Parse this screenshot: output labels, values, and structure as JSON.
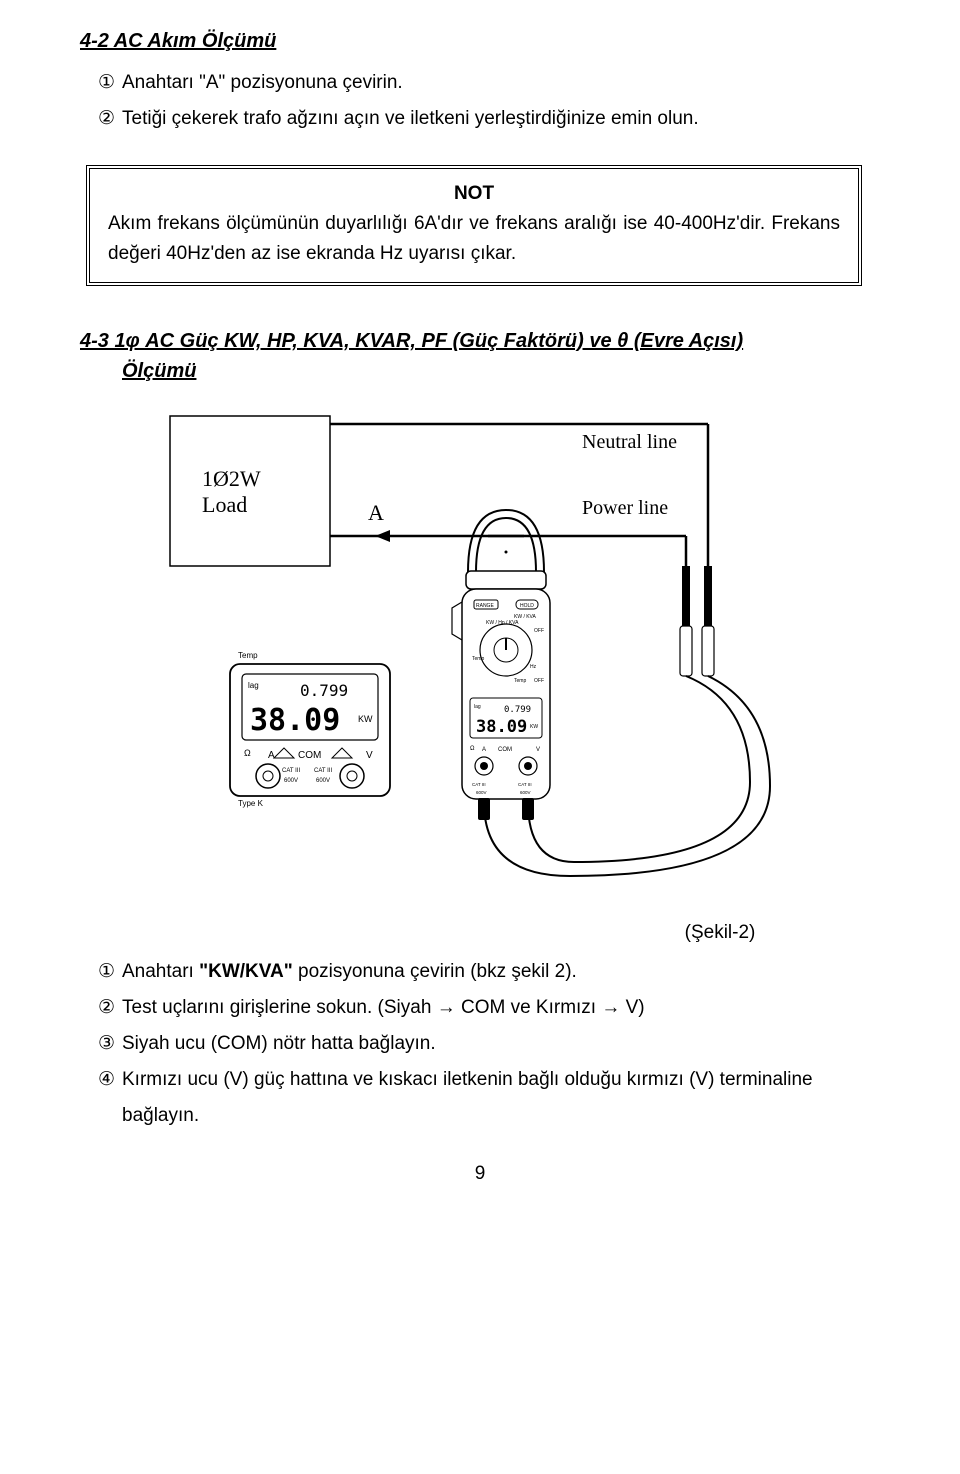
{
  "section_4_2": {
    "title": "4-2 AC Akım Ölçümü",
    "items": [
      {
        "marker": "①",
        "text": "Anahtarı \"A\" pozisyonuna çevirin."
      },
      {
        "marker": "②",
        "text": "Tetiği çekerek trafo ağzını açın ve iletkeni yerleştirdiğinize emin olun."
      }
    ]
  },
  "note": {
    "title": "NOT",
    "body": "Akım frekans ölçümünün duyarlılığı 6A'dır ve frekans aralığı ise 40-400Hz'dir. Frekans değeri 40Hz'den az ise ekranda Hz uyarısı çıkar."
  },
  "section_4_3": {
    "title_line1": "4-3 1φ AC Güç KW, HP, KVA, KVAR, PF (Güç Faktörü) ve θ (Evre Açısı)",
    "title_line2": "Ölçümü"
  },
  "diagram": {
    "load_label1": "1Ø2W",
    "load_label2": "Load",
    "arrow_label": "A",
    "neutral_label": "Neutral line",
    "power_label": "Power line",
    "meter_display1": "0.799",
    "meter_display2": "38.09",
    "meter_unit": "KW",
    "meter_lag": "lag",
    "range_label": "RANGE",
    "hold_label": "HOLD",
    "com_label": "COM",
    "a_label": "A",
    "v_label": "V",
    "cat_label": "CAT III",
    "volt_label": "600V",
    "temp_label": "Temp",
    "off_label": "OFF",
    "type_k": "Type K",
    "mode_label": "KW / KVA",
    "dial_label": "KW / Hp / KVA",
    "hz_label": "Hz",
    "omega": "Ω",
    "colors": {
      "stroke": "#000000",
      "bg": "#ffffff",
      "grey": "#cccccc"
    }
  },
  "caption": "(Şekil-2)",
  "section_4_3_items": [
    {
      "marker": "①",
      "html": "Anahtarı <b>\"KW/KVA\"</b> pozisyonuna çevirin (bkz şekil 2)."
    },
    {
      "marker": "②",
      "html": "Test uçlarını girişlerine sokun. (Siyah → COM ve Kırmızı → V)"
    },
    {
      "marker": "③",
      "html": "Siyah ucu (COM) nötr hatta bağlayın."
    },
    {
      "marker": "④",
      "html": "Kırmızı ucu (V) güç hattına ve kıskacı iletkenin bağlı olduğu kırmızı (V) terminaline bağlayın."
    }
  ],
  "page_number": "9"
}
